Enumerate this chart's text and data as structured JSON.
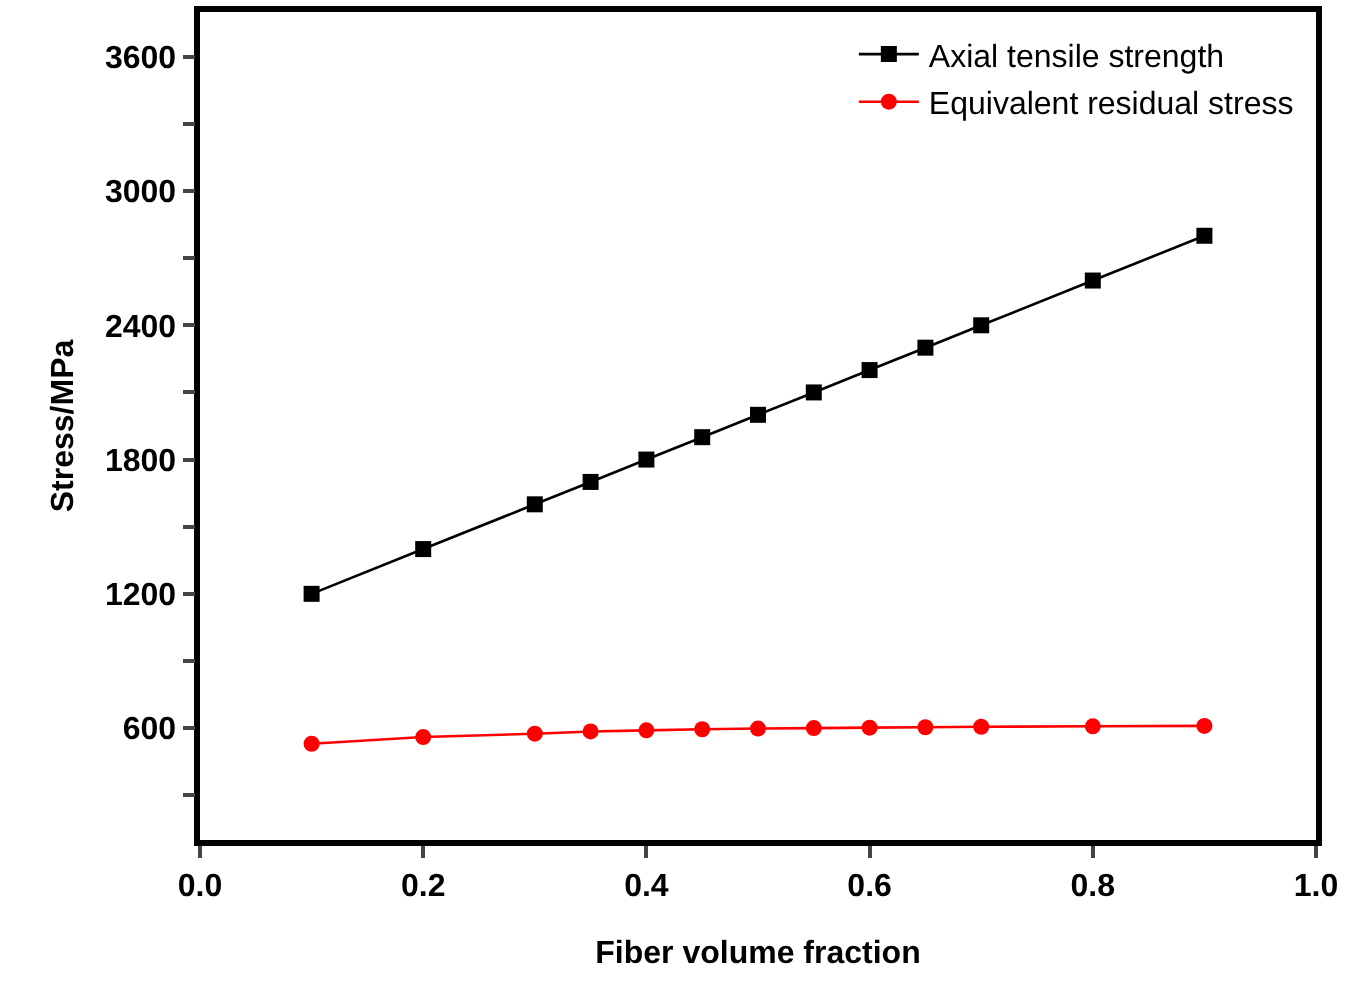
{
  "chart_data": {
    "type": "line",
    "xlabel": "Fiber volume fraction",
    "ylabel": "Stress/MPa",
    "x": [
      0.1,
      0.2,
      0.3,
      0.35,
      0.4,
      0.45,
      0.5,
      0.55,
      0.6,
      0.65,
      0.7,
      0.8,
      0.9
    ],
    "series": [
      {
        "name": "Axial tensile strength",
        "color": "#000000",
        "marker": "square",
        "values": [
          1200,
          1400,
          1600,
          1700,
          1800,
          1900,
          2000,
          2100,
          2200,
          2300,
          2400,
          2600,
          2800
        ]
      },
      {
        "name": "Equivalent residual stress",
        "color": "#ff0000",
        "marker": "circle",
        "values": [
          530,
          560,
          575,
          585,
          590,
          595,
          598,
          600,
          602,
          604,
          606,
          608,
          610
        ]
      }
    ],
    "xlim": [
      0,
      1
    ],
    "xticks": [
      {
        "value": 0,
        "label": "0.0"
      },
      0.2,
      0.4,
      0.6,
      0.8,
      {
        "value": 1,
        "label": "1.0"
      }
    ],
    "ylim": [
      100,
      3800
    ],
    "yticks": [
      {
        "value": 300,
        "label": null
      },
      600,
      {
        "value": 900,
        "label": null
      },
      1200,
      {
        "value": 1500,
        "label": null
      },
      1800,
      {
        "value": 2100,
        "label": null
      },
      2400,
      {
        "value": 2700,
        "label": null
      },
      3000,
      {
        "value": 3300,
        "label": null
      },
      3600
    ],
    "grid": false,
    "legend": "top right",
    "line_style": "solid"
  }
}
